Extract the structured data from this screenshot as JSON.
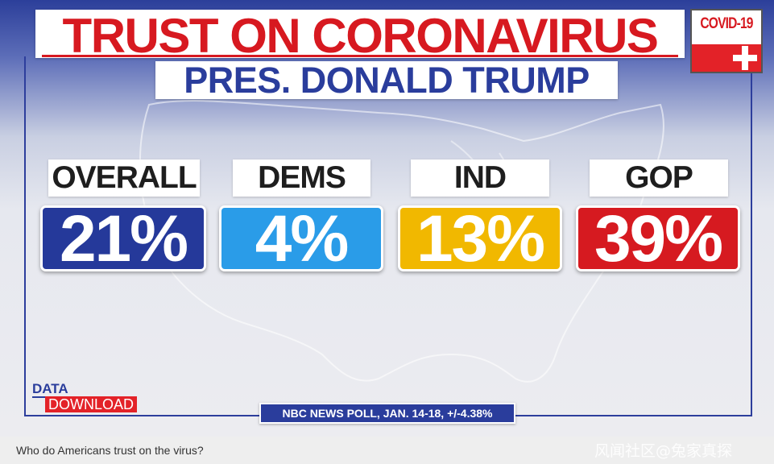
{
  "title": "TRUST ON CORONAVIRUS",
  "subtitle": "PRES. DONALD TRUMP",
  "badge": "COVID-19",
  "groups": [
    {
      "label": "OVERALL",
      "value": "21%",
      "color": "#25399a"
    },
    {
      "label": "DEMS",
      "value": "4%",
      "color": "#2a9ce8"
    },
    {
      "label": "IND",
      "value": "13%",
      "color": "#f1b800"
    },
    {
      "label": "GOP",
      "value": "39%",
      "color": "#d61a20"
    }
  ],
  "logo": {
    "top": "DATA",
    "bottom": "DOWNLOAD"
  },
  "source": "NBC NEWS POLL, JAN. 14-18, +/-4.38%",
  "caption": "Who do Americans trust on the virus?",
  "watermark": "风闻社区@兔家真探"
}
